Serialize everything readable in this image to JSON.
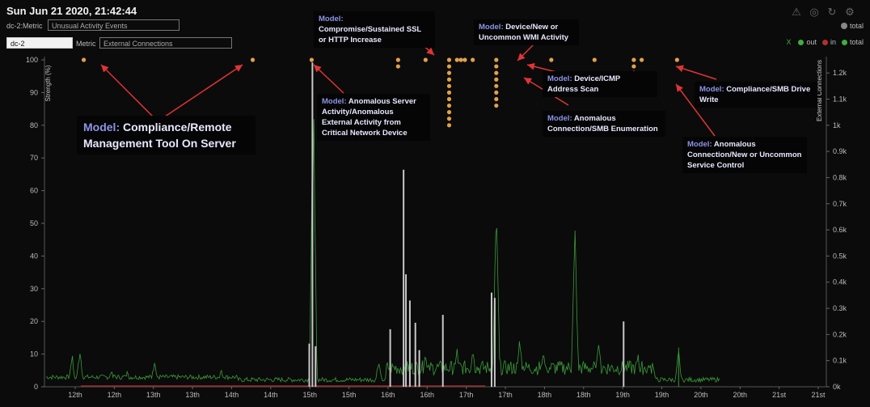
{
  "header": {
    "datetime": "Sun Jun 21 2020, 21:42:44",
    "row1_label": "dc-2:Metric",
    "row1_value": "Unusual Activity Events",
    "device_value": "dc-2",
    "metric_label": "Metric",
    "metric_value": "External Connections",
    "total_label": "total"
  },
  "icons": [
    "warning-icon",
    "compass-icon",
    "refresh-icon",
    "settings-icon"
  ],
  "legend": {
    "close": "X",
    "items": [
      {
        "name": "out",
        "color": "#3fae3f"
      },
      {
        "name": "in",
        "color": "#b03030"
      },
      {
        "name": "total",
        "color": "#3fae3f"
      }
    ]
  },
  "annotations": [
    {
      "prefix": "Model:",
      "text": "Compliance/Remote Management Tool On Server"
    },
    {
      "prefix": "Model:",
      "text": "Anomalous Server Activity/Anomalous External Activity from Critical Network Device"
    },
    {
      "prefix": "Model:",
      "text": "Compromise/Sustained SSL or HTTP Increase"
    },
    {
      "prefix": "Model:",
      "text": "Device/New or Uncommon WMI Activity"
    },
    {
      "prefix": "Model:",
      "text": "Device/ICMP Address Scan"
    },
    {
      "prefix": "Model:",
      "text": "Anomalous Connection/SMB Enumeration"
    },
    {
      "prefix": "Model:",
      "text": "Compliance/SMB Drive Write"
    },
    {
      "prefix": "Model:",
      "text": "Anomalous Connection/New or Uncommon Service Control"
    }
  ],
  "chart_data": {
    "type": "line",
    "ylabel_left": "Strength (%)",
    "ylabel_right": "External Connections",
    "ylim_left": [
      0,
      100
    ],
    "ylim_right": [
      0,
      1250
    ],
    "left_ticks": [
      0,
      10,
      20,
      30,
      40,
      50,
      60,
      70,
      80,
      90,
      100
    ],
    "right_ticks": [
      "0k",
      "0.1k",
      "0.2k",
      "0.3k",
      "0.4k",
      "0.5k",
      "0.6k",
      "0.7k",
      "0.8k",
      "0.9k",
      "1k",
      "1.1k",
      "1.2k"
    ],
    "x_tick_labels": [
      "12th",
      "12th",
      "13th",
      "13th",
      "14th",
      "14th",
      "15th",
      "15th",
      "16th",
      "16th",
      "17th",
      "17th",
      "18th",
      "18th",
      "19th",
      "19th",
      "20th",
      "20th",
      "21st",
      "21st"
    ],
    "model_breach_dots": [
      {
        "x": 12.05,
        "strength": 100
      },
      {
        "x": 14.2,
        "strength": 100
      },
      {
        "x": 14.95,
        "strength": 100
      },
      {
        "x": 16.05,
        "strength": [
          100,
          98
        ]
      },
      {
        "x": 16.4,
        "strength": 100
      },
      {
        "x": 16.7,
        "strength": [
          100,
          98,
          96,
          94,
          92,
          90,
          88,
          86,
          84,
          82,
          80
        ]
      },
      {
        "x": 16.8,
        "strength": 100
      },
      {
        "x": 16.85,
        "strength": 100
      },
      {
        "x": 16.9,
        "strength": 100
      },
      {
        "x": 17.0,
        "strength": 100
      },
      {
        "x": 17.3,
        "strength": [
          100,
          98,
          96,
          94,
          92,
          90,
          88,
          86
        ]
      },
      {
        "x": 18.0,
        "strength": 100
      },
      {
        "x": 18.55,
        "strength": 100
      },
      {
        "x": 19.05,
        "strength": [
          100,
          98,
          96,
          94,
          92
        ]
      },
      {
        "x": 19.15,
        "strength": 100
      },
      {
        "x": 19.6,
        "strength": 100
      }
    ],
    "gray_spikes": [
      {
        "x": 14.92,
        "connections": 165
      },
      {
        "x": 14.96,
        "connections": 1240
      },
      {
        "x": 15.0,
        "connections": 155
      },
      {
        "x": 15.95,
        "connections": 220
      },
      {
        "x": 16.12,
        "connections": 830
      },
      {
        "x": 16.15,
        "connections": 430
      },
      {
        "x": 16.2,
        "connections": 330
      },
      {
        "x": 16.27,
        "connections": 245
      },
      {
        "x": 16.32,
        "connections": 140
      },
      {
        "x": 16.62,
        "connections": 275
      },
      {
        "x": 17.24,
        "connections": 360
      },
      {
        "x": 17.28,
        "connections": 340
      },
      {
        "x": 18.92,
        "connections": 250
      }
    ],
    "green_peaks": [
      {
        "x": 11.9,
        "connections": 135
      },
      {
        "x": 12.0,
        "connections": 160
      },
      {
        "x": 12.4,
        "connections": 80
      },
      {
        "x": 12.6,
        "connections": 70
      },
      {
        "x": 12.95,
        "connections": 115
      },
      {
        "x": 13.8,
        "connections": 75
      },
      {
        "x": 14.97,
        "connections": 1220
      },
      {
        "x": 15.8,
        "connections": 120
      },
      {
        "x": 16.4,
        "connections": 165
      },
      {
        "x": 16.8,
        "connections": 160
      },
      {
        "x": 17.0,
        "connections": 175
      },
      {
        "x": 17.3,
        "connections": 745
      },
      {
        "x": 17.6,
        "connections": 215
      },
      {
        "x": 17.9,
        "connections": 185
      },
      {
        "x": 18.3,
        "connections": 650
      },
      {
        "x": 18.6,
        "connections": 235
      },
      {
        "x": 19.1,
        "connections": 145
      },
      {
        "x": 19.3,
        "connections": 90
      },
      {
        "x": 19.62,
        "connections": 150
      }
    ]
  }
}
